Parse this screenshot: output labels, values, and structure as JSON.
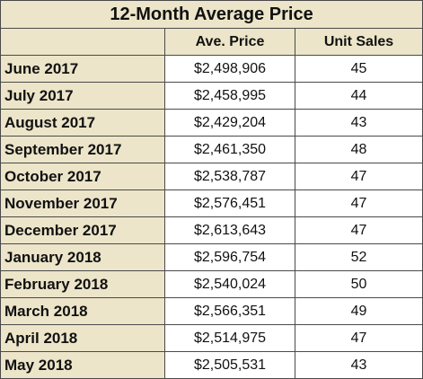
{
  "table": {
    "title": "12-Month Average Price",
    "headers": [
      "",
      "Ave. Price",
      "Unit Sales"
    ],
    "rows": [
      {
        "month": "June 2017",
        "price": "$2,498,906",
        "units": "45"
      },
      {
        "month": "July 2017",
        "price": "$2,458,995",
        "units": "44"
      },
      {
        "month": "August 2017",
        "price": "$2,429,204",
        "units": "43"
      },
      {
        "month": "September 2017",
        "price": "$2,461,350",
        "units": "48"
      },
      {
        "month": "October 2017",
        "price": "$2,538,787",
        "units": "47"
      },
      {
        "month": "November 2017",
        "price": "$2,576,451",
        "units": "47"
      },
      {
        "month": "December 2017",
        "price": "$2,613,643",
        "units": "47"
      },
      {
        "month": "January 2018",
        "price": "$2,596,754",
        "units": "52"
      },
      {
        "month": "February 2018",
        "price": "$2,540,024",
        "units": "50"
      },
      {
        "month": "March 2018",
        "price": "$2,566,351",
        "units": "49"
      },
      {
        "month": "April 2018",
        "price": "$2,514,975",
        "units": "47"
      },
      {
        "month": "May 2018",
        "price": "$2,505,531",
        "units": "43"
      }
    ]
  }
}
